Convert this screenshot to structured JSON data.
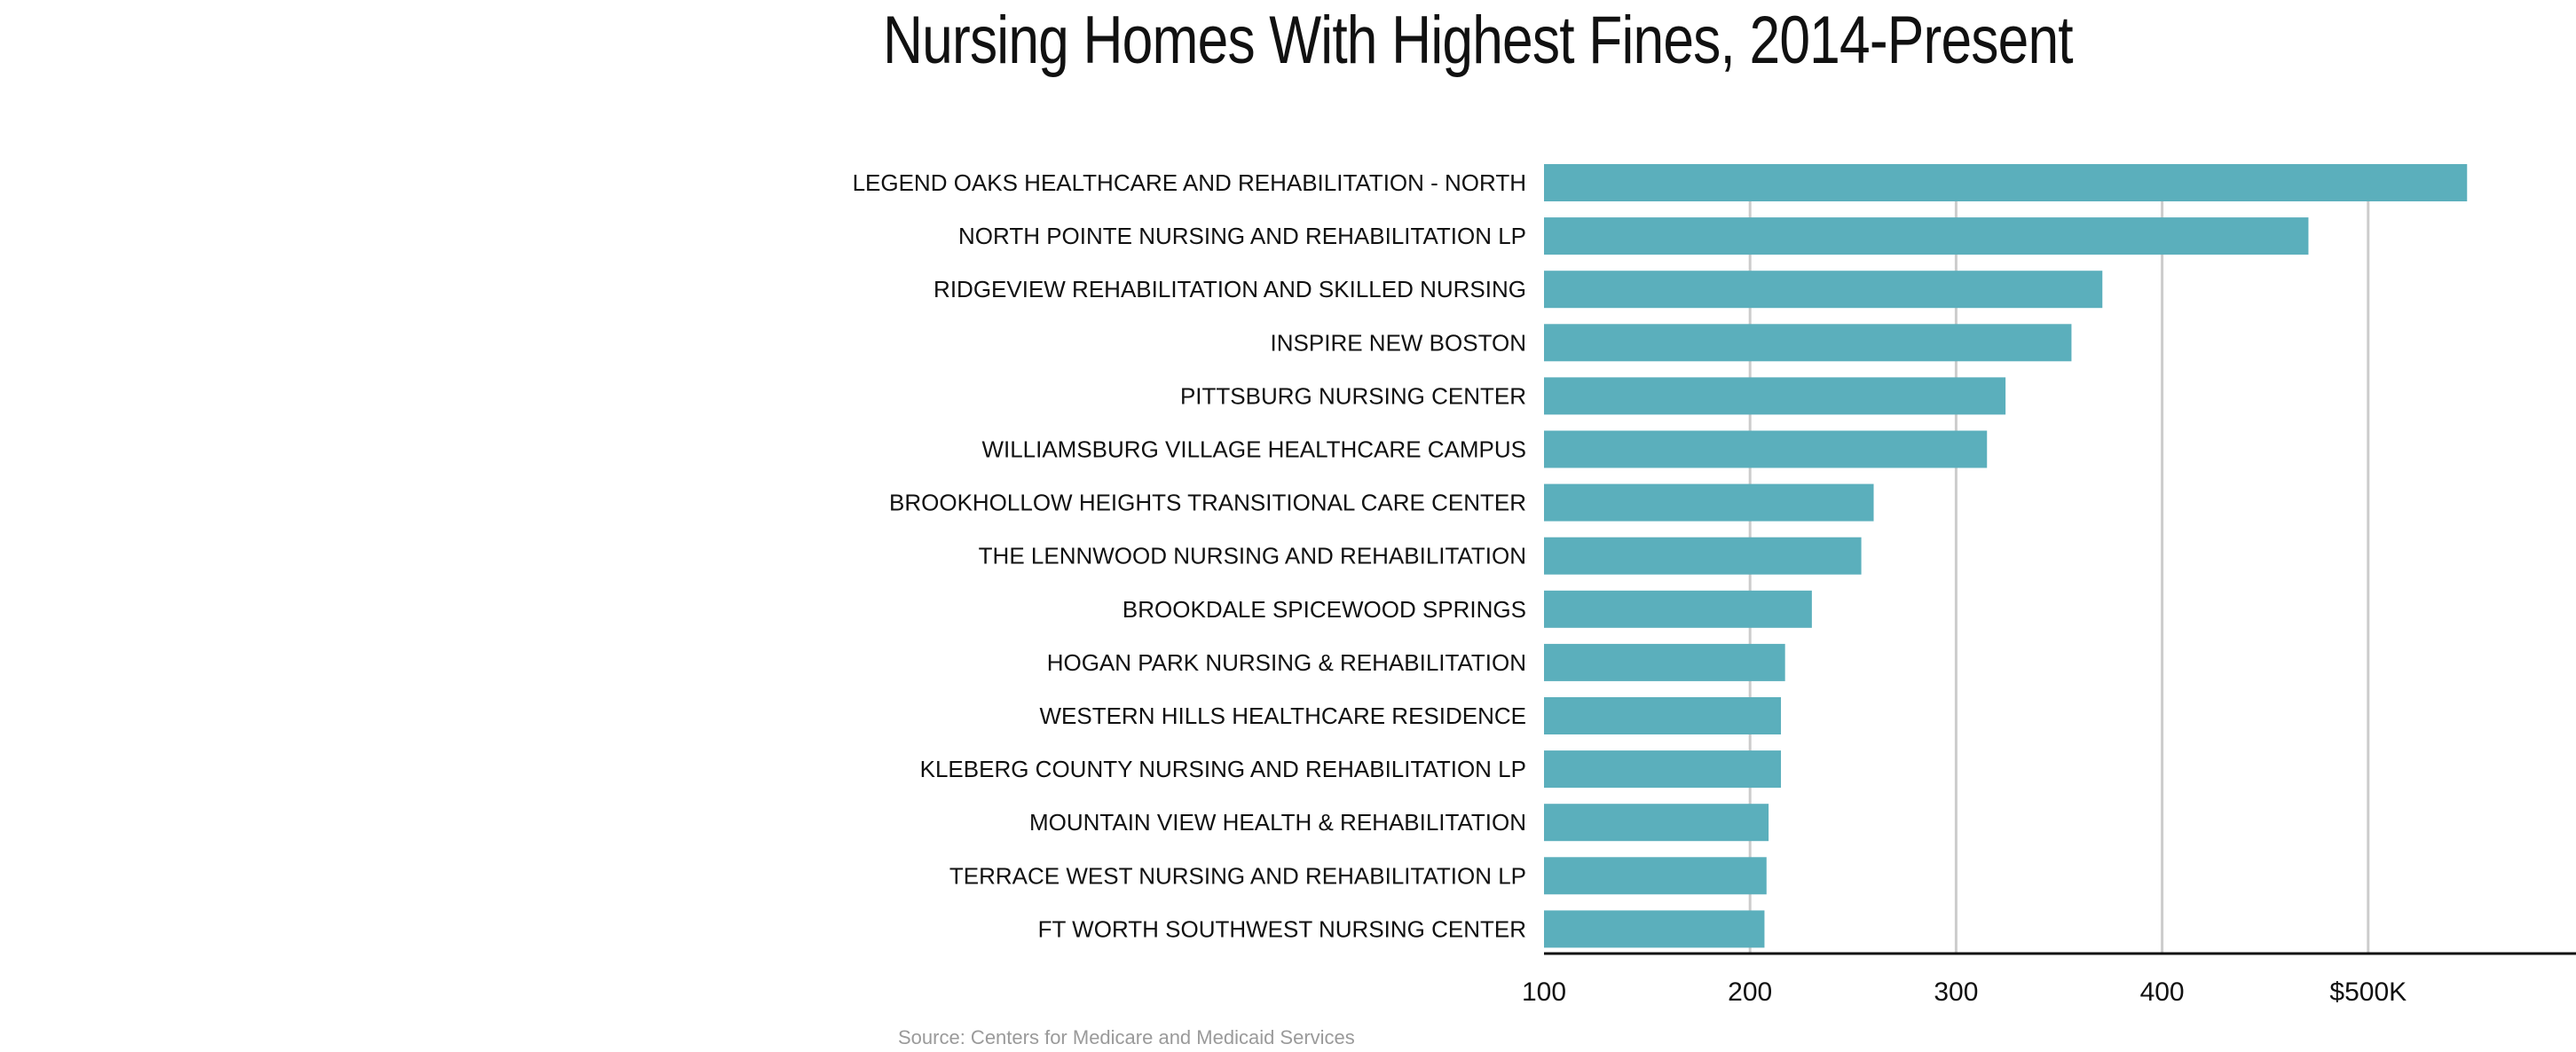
{
  "chart_data": {
    "type": "bar",
    "orientation": "horizontal",
    "title": "Nursing Homes With Highest Fines, 2014-Present",
    "source": "Source: Centers for Medicare and Medicaid Services",
    "categories": [
      "LEGEND OAKS HEALTHCARE AND REHABILITATION - NORTH",
      "NORTH POINTE NURSING AND REHABILITATION LP",
      "RIDGEVIEW REHABILITATION AND SKILLED NURSING",
      "INSPIRE NEW BOSTON",
      "PITTSBURG NURSING CENTER",
      "WILLIAMSBURG VILLAGE HEALTHCARE CAMPUS",
      "BROOKHOLLOW HEIGHTS TRANSITIONAL CARE CENTER",
      "THE LENNWOOD NURSING AND REHABILITATION",
      "BROOKDALE SPICEWOOD SPRINGS",
      "HOGAN PARK NURSING & REHABILITATION",
      "WESTERN HILLS HEALTHCARE RESIDENCE",
      "KLEBERG COUNTY NURSING AND REHABILITATION LP",
      "MOUNTAIN VIEW HEALTH & REHABILITATION",
      "TERRACE WEST NURSING AND REHABILITATION LP",
      "FT WORTH SOUTHWEST NURSING CENTER"
    ],
    "values": [
      548,
      471,
      371,
      356,
      324,
      315,
      260,
      254,
      230,
      217,
      215,
      215,
      209,
      208,
      207
    ],
    "xlim": [
      100,
      600
    ],
    "xticks": [
      100,
      200,
      300,
      400,
      500
    ],
    "xtick_labels": [
      "100",
      "200",
      "300",
      "400",
      "$500K"
    ],
    "units": "thousands of dollars",
    "grid": "vertical",
    "bar_color": "#5bafbc",
    "grid_color": "#cccccc",
    "axis_color": "#111111"
  }
}
